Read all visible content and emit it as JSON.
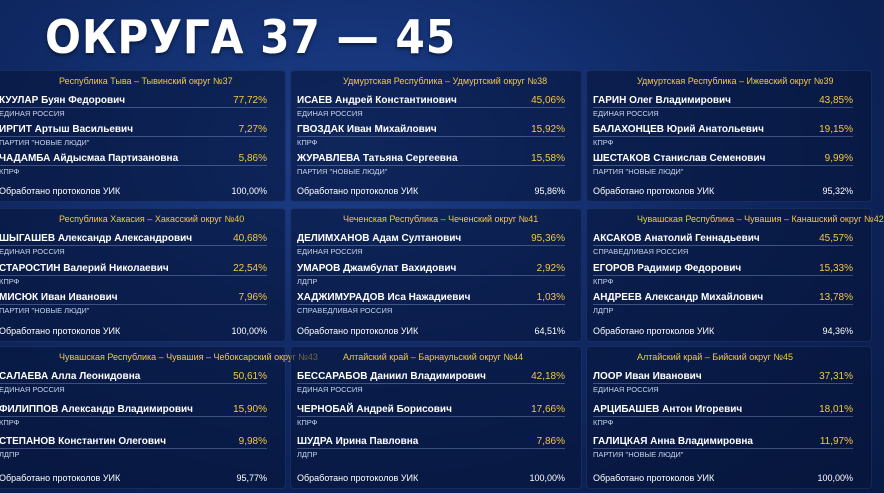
{
  "header": {
    "title": "ОКРУГА 37 — 45"
  },
  "districts": [
    {
      "name": "Республика Тыва – Тывинский округ №37",
      "candidates": [
        {
          "name": "КУУЛАР Буян Федорович",
          "party": "ЕДИНАЯ РОССИЯ",
          "pct": "77,72%"
        },
        {
          "name": "ИРГИТ Артыш Васильевич",
          "party": "ПАРТИЯ \"НОВЫЕ ЛЮДИ\"",
          "pct": "7,27%"
        },
        {
          "name": "ЧАДАМБА Айдысмаа Партизановна",
          "party": "КПРФ",
          "pct": "5,86%"
        }
      ],
      "processed_label": "Обработано протоколов УИК",
      "processed_value": "100,00%"
    },
    {
      "name": "Удмуртская Республика – Удмуртский округ №38",
      "candidates": [
        {
          "name": "ИСАЕВ Андрей Константинович",
          "party": "ЕДИНАЯ РОССИЯ",
          "pct": "45,06%"
        },
        {
          "name": "ГВОЗДАК Иван Михайлович",
          "party": "КПРФ",
          "pct": "15,92%"
        },
        {
          "name": "ЖУРАВЛЕВА Татьяна Сергеевна",
          "party": "ПАРТИЯ \"НОВЫЕ ЛЮДИ\"",
          "pct": "15,58%"
        }
      ],
      "processed_label": "Обработано протоколов УИК",
      "processed_value": "95,86%"
    },
    {
      "name": "Удмуртская Республика – Ижевский округ №39",
      "candidates": [
        {
          "name": "ГАРИН Олег Владимирович",
          "party": "ЕДИНАЯ РОССИЯ",
          "pct": "43,85%"
        },
        {
          "name": "БАЛАХОНЦЕВ Юрий Анатольевич",
          "party": "КПРФ",
          "pct": "19,15%"
        },
        {
          "name": "ШЕСТАКОВ Станислав Семенович",
          "party": "ПАРТИЯ \"НОВЫЕ ЛЮДИ\"",
          "pct": "9,99%"
        }
      ],
      "processed_label": "Обработано протоколов УИК",
      "processed_value": "95,32%"
    },
    {
      "name": "Республика Хакасия – Хакасский округ №40",
      "candidates": [
        {
          "name": "ШЫГАШЕВ Александр Александрович",
          "party": "ЕДИНАЯ РОССИЯ",
          "pct": "40,68%"
        },
        {
          "name": "СТАРОСТИН Валерий Николаевич",
          "party": "КПРФ",
          "pct": "22,54%"
        },
        {
          "name": "МИСЮК Иван Иванович",
          "party": "ПАРТИЯ \"НОВЫЕ ЛЮДИ\"",
          "pct": "7,96%"
        }
      ],
      "processed_label": "Обработано протоколов УИК",
      "processed_value": "100,00%"
    },
    {
      "name": "Чеченская Республика – Чеченский округ №41",
      "candidates": [
        {
          "name": "ДЕЛИМХАНОВ Адам Султанович",
          "party": "ЕДИНАЯ РОССИЯ",
          "pct": "95,36%"
        },
        {
          "name": "УМАРОВ Джамбулат Вахидович",
          "party": "ЛДПР",
          "pct": "2,92%"
        },
        {
          "name": "ХАДЖИМУРАДОВ Иса Нажадиевич",
          "party": "СПРАВЕДЛИВАЯ РОССИЯ",
          "pct": "1,03%"
        }
      ],
      "processed_label": "Обработано протоколов УИК",
      "processed_value": "64,51%"
    },
    {
      "name": "Чувашская Республика – Чувашия – Канашский округ №42",
      "candidates": [
        {
          "name": "АКСАКОВ Анатолий Геннадьевич",
          "party": "СПРАВЕДЛИВАЯ РОССИЯ",
          "pct": "45,57%"
        },
        {
          "name": "ЕГОРОВ Радимир Федорович",
          "party": "КПРФ",
          "pct": "15,33%"
        },
        {
          "name": "АНДРЕЕВ Александр Михайлович",
          "party": "ЛДПР",
          "pct": "13,78%"
        }
      ],
      "processed_label": "Обработано протоколов УИК",
      "processed_value": "94,36%"
    },
    {
      "name": "Чувашская Республика – Чувашия – Чебоксарский округ №43",
      "candidates": [
        {
          "name": "САЛАЕВА Алла Леонидовна",
          "party": "ЕДИНАЯ РОССИЯ",
          "pct": "50,61%"
        },
        {
          "name": "ФИЛИППОВ Александр Владимирович",
          "party": "КПРФ",
          "pct": "15,90%"
        },
        {
          "name": "СТЕПАНОВ Константин Олегович",
          "party": "ЛДПР",
          "pct": "9,98%"
        }
      ],
      "processed_label": "Обработано протоколов УИК",
      "processed_value": "95,77%"
    },
    {
      "name": "Алтайский край – Барнаульский округ №44",
      "candidates": [
        {
          "name": "БЕССАРАБОВ Даниил Владимирович",
          "party": "ЕДИНАЯ РОССИЯ",
          "pct": "42,18%"
        },
        {
          "name": "ЧЕРНОБАЙ Андрей Борисович",
          "party": "КПРФ",
          "pct": "17,66%"
        },
        {
          "name": "ШУДРА Ирина Павловна",
          "party": "ЛДПР",
          "pct": "7,86%"
        }
      ],
      "processed_label": "Обработано протоколов УИК",
      "processed_value": "100,00%"
    },
    {
      "name": "Алтайский край – Бийский округ №45",
      "candidates": [
        {
          "name": "ЛООР Иван Иванович",
          "party": "ЕДИНАЯ РОССИЯ",
          "pct": "37,31%"
        },
        {
          "name": "АРЦИБАШЕВ Антон Игоревич",
          "party": "КПРФ",
          "pct": "18,01%"
        },
        {
          "name": "ГАЛИЦКАЯ Анна Владимировна",
          "party": "ПАРТИЯ \"НОВЫЕ ЛЮДИ\"",
          "pct": "11,97%"
        }
      ],
      "processed_label": "Обработано протоколов УИК",
      "processed_value": "100,00%"
    }
  ]
}
